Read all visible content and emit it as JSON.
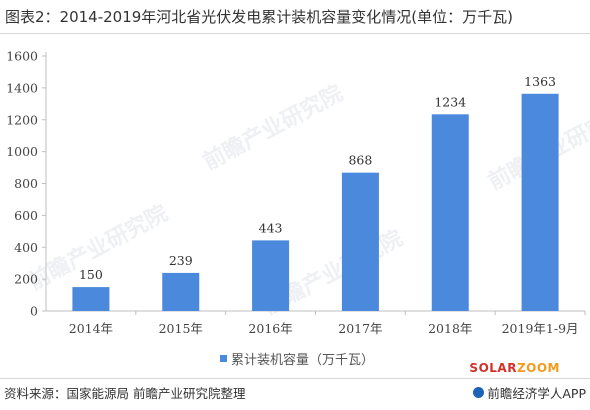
{
  "header": {
    "title": "图表2：2014-2019年河北省光伏发电累计装机容量变化情况(单位：万千瓦)"
  },
  "chart_data": {
    "type": "bar",
    "title": "",
    "xlabel": "",
    "ylabel": "",
    "categories": [
      "2014年",
      "2015年",
      "2016年",
      "2017年",
      "2018年",
      "2019年1-9月"
    ],
    "series": [
      {
        "name": "累计装机容量（万千瓦）",
        "values": [
          150,
          239,
          443,
          868,
          1234,
          1363
        ]
      }
    ],
    "data_labels": [
      "150",
      "239",
      "443",
      "868",
      "1234",
      "1363"
    ],
    "ylim": [
      0,
      1600
    ],
    "yticks": [
      0,
      200,
      400,
      600,
      800,
      1000,
      1200,
      1400,
      1600
    ],
    "ytick_labels": [
      "0",
      "200",
      "400",
      "600",
      "800",
      "1000",
      "1200",
      "1400",
      "1600"
    ],
    "grid": false,
    "legend_position": "bottom",
    "bar_color": "#4a89dc"
  },
  "footer": {
    "source": "资料来源：国家能源局 前瞻产业研究院整理",
    "brand_solar_part1": "SOLAR",
    "brand_solar_part2": "ZOOM",
    "brand_app": "前瞻经济学人APP"
  },
  "watermark": {
    "text": "前瞻产业研究院"
  }
}
